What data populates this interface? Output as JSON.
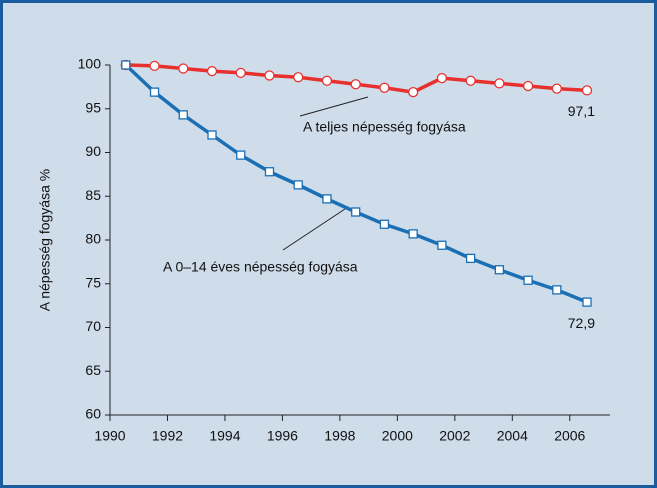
{
  "chart_data": {
    "type": "line",
    "y_label": "A népesség fogyása %",
    "x": [
      1990.55,
      1991.55,
      1992.55,
      1993.55,
      1994.55,
      1995.55,
      1996.55,
      1997.55,
      1998.55,
      1999.55,
      2000.55,
      2001.55,
      2002.55,
      2003.55,
      2004.55,
      2005.55,
      2006.6
    ],
    "series": [
      {
        "name": "A teljes népesség fogyása",
        "color": "#e8302e",
        "marker": "circle",
        "values": [
          100,
          99.9,
          99.6,
          99.3,
          99.1,
          98.8,
          98.6,
          98.2,
          97.8,
          97.4,
          96.9,
          98.5,
          98.2,
          97.9,
          97.6,
          97.3,
          97.1
        ],
        "value_labels": [
          null,
          null,
          null,
          null,
          null,
          null,
          null,
          null,
          null,
          null,
          null,
          null,
          null,
          null,
          null,
          null,
          "97,1"
        ]
      },
      {
        "name": "A 0–14 éves népesség fogyása",
        "color": "#1a6fb5",
        "marker": "square",
        "values": [
          100,
          96.9,
          94.3,
          92.0,
          89.7,
          87.8,
          86.3,
          84.7,
          83.2,
          81.8,
          80.7,
          79.4,
          77.9,
          76.6,
          75.4,
          74.3,
          72.9
        ],
        "value_labels": [
          null,
          null,
          null,
          null,
          null,
          null,
          null,
          null,
          null,
          null,
          null,
          null,
          null,
          null,
          null,
          null,
          "72,9"
        ]
      }
    ],
    "xlim": [
      1990,
      2007.4
    ],
    "xticks": [
      1990,
      1992,
      1994,
      1996,
      1998,
      2000,
      2002,
      2004,
      2006
    ],
    "ylim": [
      60,
      100
    ],
    "yticks": [
      60,
      65,
      70,
      75,
      80,
      85,
      90,
      95,
      100
    ],
    "grid": false
  }
}
